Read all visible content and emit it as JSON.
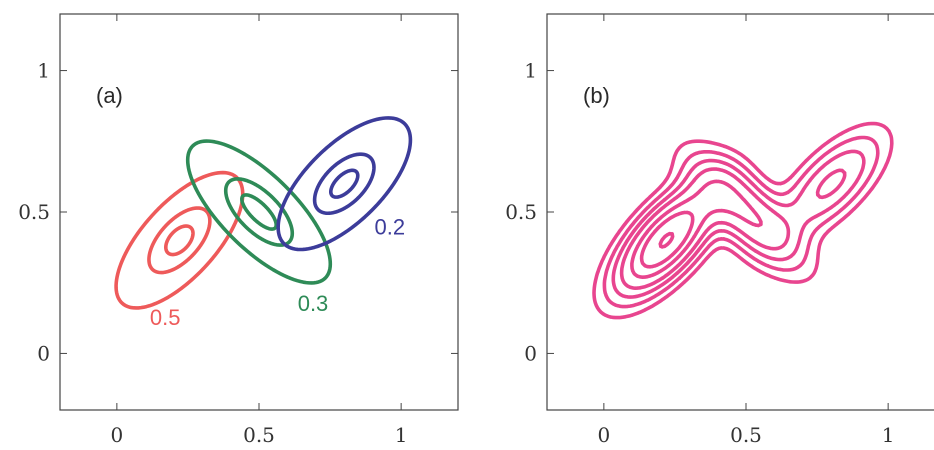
{
  "chart_data": [
    {
      "type": "contour",
      "panel_label": "(a)",
      "title": "",
      "xlabel": "",
      "ylabel": "",
      "xlim": [
        -0.2,
        1.2
      ],
      "ylim": [
        -0.2,
        1.2
      ],
      "x_ticks": [
        0,
        0.5,
        1
      ],
      "y_ticks": [
        0,
        0.5,
        1
      ],
      "x_tick_labels": [
        "0",
        "0.5",
        "1"
      ],
      "y_tick_labels": [
        "0",
        "0.5",
        "1"
      ],
      "components": [
        {
          "weight": "0.5",
          "color": "#ee5a5a",
          "center": [
            0.22,
            0.4
          ],
          "angle_deg": 48,
          "radii": [
            [
              0.06,
              0.035
            ],
            [
              0.14,
              0.07
            ],
            [
              0.3,
              0.13
            ]
          ],
          "label_pos": [
            0.17,
            0.1
          ]
        },
        {
          "weight": "0.3",
          "color": "#2e8b57",
          "center": [
            0.5,
            0.5
          ],
          "angle_deg": -45,
          "radii": [
            [
              0.08,
              0.03
            ],
            [
              0.15,
              0.07
            ],
            [
              0.33,
              0.13
            ]
          ],
          "label_pos": [
            0.69,
            0.15
          ]
        },
        {
          "weight": "0.2",
          "color": "#3c3c9a",
          "center": [
            0.8,
            0.6
          ],
          "angle_deg": 45,
          "radii": [
            [
              0.06,
              0.03
            ],
            [
              0.13,
              0.07
            ],
            [
              0.3,
              0.135
            ]
          ],
          "label_pos": [
            0.96,
            0.42
          ]
        }
      ]
    },
    {
      "type": "contour",
      "panel_label": "(b)",
      "title": "",
      "xlabel": "",
      "ylabel": "",
      "xlim": [
        -0.2,
        1.2
      ],
      "ylim": [
        -0.2,
        1.2
      ],
      "x_ticks": [
        0,
        0.5,
        1
      ],
      "y_ticks": [
        0,
        0.5,
        1
      ],
      "x_tick_labels": [
        "0",
        "0.5",
        "1"
      ],
      "y_tick_labels": [
        "0",
        "0.5",
        "1"
      ],
      "color": "#e8458f",
      "mixture": [
        {
          "weight": 0.5,
          "center": [
            0.22,
            0.4
          ],
          "angle_deg": 48,
          "sigma": [
            0.15,
            0.065
          ]
        },
        {
          "weight": 0.3,
          "center": [
            0.5,
            0.5
          ],
          "angle_deg": -45,
          "sigma": [
            0.16,
            0.065
          ]
        },
        {
          "weight": 0.2,
          "center": [
            0.8,
            0.6
          ],
          "angle_deg": 45,
          "sigma": [
            0.15,
            0.065
          ]
        }
      ],
      "levels": [
        0.6,
        1.2,
        2.0,
        3.0,
        4.5,
        6.0,
        8.0
      ]
    }
  ]
}
